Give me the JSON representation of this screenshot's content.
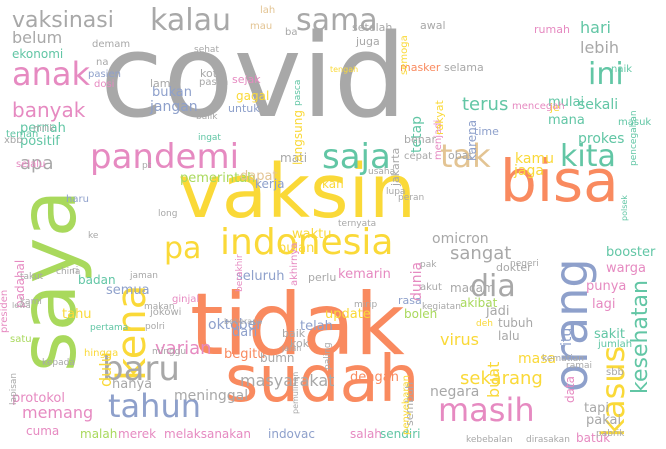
{
  "palette": {
    "gray": "#a8a8a8",
    "orange": "#f98a5f",
    "yellow": "#fad938",
    "green": "#a9d95c",
    "pink": "#e68ac1",
    "teal": "#62c6a5",
    "blue": "#8ea0cb",
    "tan": "#e3c493"
  },
  "words": [
    {
      "text": "covid",
      "color": "gray"
    },
    {
      "text": "tidak",
      "color": "orange"
    },
    {
      "text": "vaksin",
      "color": "yellow"
    },
    {
      "text": "saya",
      "color": "green"
    },
    {
      "text": "sudah",
      "color": "orange"
    },
    {
      "text": "bisa",
      "color": "orange"
    },
    {
      "text": "orang",
      "color": "blue"
    },
    {
      "text": "indonesia",
      "color": "yellow"
    },
    {
      "text": "kena",
      "color": "yellow"
    },
    {
      "text": "pandemi",
      "color": "pink"
    },
    {
      "text": "tahun",
      "color": "blue"
    },
    {
      "text": "masih",
      "color": "pink"
    },
    {
      "text": "anak",
      "color": "pink"
    },
    {
      "text": "saja",
      "color": "teal"
    },
    {
      "text": "kita",
      "color": "teal"
    },
    {
      "text": "kalau",
      "color": "gray"
    },
    {
      "text": "sama",
      "color": "gray"
    },
    {
      "text": "baru",
      "color": "gray"
    },
    {
      "text": "kasus",
      "color": "yellow"
    },
    {
      "text": "kesehatan",
      "color": "teal"
    },
    {
      "text": "dia",
      "color": "gray"
    },
    {
      "text": "tak",
      "color": "tan"
    },
    {
      "text": "pa",
      "color": "yellow"
    },
    {
      "text": "ini",
      "color": "teal"
    },
    {
      "text": "vaksinasi",
      "color": "gray"
    },
    {
      "text": "terus",
      "color": "teal"
    },
    {
      "text": "hari",
      "color": "teal"
    },
    {
      "text": "banyak",
      "color": "pink"
    },
    {
      "text": "sekarang",
      "color": "yellow"
    },
    {
      "text": "sangat",
      "color": "gray"
    },
    {
      "text": "apa",
      "color": "gray"
    },
    {
      "text": "lebih",
      "color": "gray"
    },
    {
      "text": "belum",
      "color": "gray"
    },
    {
      "text": "ekonomi",
      "color": "teal"
    },
    {
      "text": "varian",
      "color": "pink"
    },
    {
      "text": "dulu",
      "color": "yellow"
    },
    {
      "text": "memang",
      "color": "pink"
    },
    {
      "text": "masyarakat",
      "color": "gray"
    },
    {
      "text": "virus",
      "color": "yellow"
    },
    {
      "text": "oktober",
      "color": "blue"
    },
    {
      "text": "buat",
      "color": "yellow"
    },
    {
      "text": "negara",
      "color": "gray"
    },
    {
      "text": "masa",
      "color": "yellow"
    },
    {
      "text": "prokes",
      "color": "teal"
    },
    {
      "text": "sekali",
      "color": "teal"
    },
    {
      "text": "jangan",
      "color": "blue"
    },
    {
      "text": "bukan",
      "color": "blue"
    },
    {
      "text": "pernah",
      "color": "teal"
    },
    {
      "text": "positif",
      "color": "teal"
    },
    {
      "text": "pemerintah",
      "color": "green"
    },
    {
      "text": "dapat",
      "color": "tan"
    },
    {
      "text": "kamu",
      "color": "yellow"
    },
    {
      "text": "jaga",
      "color": "yellow"
    },
    {
      "text": "protokol",
      "color": "pink"
    },
    {
      "text": "cuma",
      "color": "pink"
    },
    {
      "text": "malah",
      "color": "green"
    },
    {
      "text": "merek",
      "color": "pink"
    },
    {
      "text": "melaksanakan",
      "color": "pink"
    },
    {
      "text": "indovac",
      "color": "blue"
    },
    {
      "text": "salah",
      "color": "pink"
    },
    {
      "text": "sendiri",
      "color": "teal"
    },
    {
      "text": "hanya",
      "color": "gray"
    },
    {
      "text": "meninggal",
      "color": "gray"
    },
    {
      "text": "dengan",
      "color": "orange"
    },
    {
      "text": "update",
      "color": "yellow"
    },
    {
      "text": "telah",
      "color": "blue"
    },
    {
      "text": "dari",
      "color": "blue"
    },
    {
      "text": "begitu",
      "color": "orange"
    },
    {
      "text": "bumn",
      "color": "gray"
    },
    {
      "text": "baik",
      "color": "gray"
    },
    {
      "text": "kok",
      "color": "gray"
    },
    {
      "text": "seluruh",
      "color": "blue"
    },
    {
      "text": "kemarin",
      "color": "pink"
    },
    {
      "text": "perlu",
      "color": "gray"
    },
    {
      "text": "semua",
      "color": "blue"
    },
    {
      "text": "tahu",
      "color": "yellow"
    },
    {
      "text": "waktu",
      "color": "yellow"
    },
    {
      "text": "bulan",
      "color": "yellow"
    },
    {
      "text": "mati",
      "color": "gray"
    },
    {
      "text": "kerja",
      "color": "blue"
    },
    {
      "text": "kan",
      "color": "yellow"
    },
    {
      "text": "omicron",
      "color": "gray"
    },
    {
      "text": "tapi",
      "color": "gray"
    },
    {
      "text": "pakai",
      "color": "gray"
    },
    {
      "text": "batuk",
      "color": "pink"
    },
    {
      "text": "sakit",
      "color": "teal"
    },
    {
      "text": "lagi",
      "color": "pink"
    },
    {
      "text": "punya",
      "color": "pink"
    },
    {
      "text": "booster",
      "color": "teal"
    },
    {
      "text": "warga",
      "color": "pink"
    },
    {
      "text": "itu",
      "color": "blue"
    },
    {
      "text": "data",
      "color": "pink"
    },
    {
      "text": "dokter",
      "color": "gray"
    },
    {
      "text": "akibat",
      "color": "green"
    },
    {
      "text": "macam",
      "color": "gray"
    },
    {
      "text": "lalu",
      "color": "gray"
    },
    {
      "text": "jadi",
      "color": "gray"
    },
    {
      "text": "tubuh",
      "color": "gray"
    },
    {
      "text": "dunia",
      "color": "pink"
    },
    {
      "text": "rasa",
      "color": "blue"
    },
    {
      "text": "boleh",
      "color": "green"
    },
    {
      "text": "akut",
      "color": "gray"
    },
    {
      "text": "mau",
      "color": "tan"
    },
    {
      "text": "lah",
      "color": "tan"
    },
    {
      "text": "ba",
      "color": "gray"
    },
    {
      "text": "setelah",
      "color": "gray"
    },
    {
      "text": "juga",
      "color": "gray"
    },
    {
      "text": "awal",
      "color": "gray"
    },
    {
      "text": "masker",
      "color": "orange"
    },
    {
      "text": "selama",
      "color": "gray"
    },
    {
      "text": "rumah",
      "color": "pink"
    },
    {
      "text": "naik",
      "color": "teal"
    },
    {
      "text": "mulai",
      "color": "teal"
    },
    {
      "text": "mana",
      "color": "teal"
    },
    {
      "text": "je",
      "color": "yellow"
    },
    {
      "text": "karena",
      "color": "blue"
    },
    {
      "text": "tetap",
      "color": "teal"
    },
    {
      "text": "langsung",
      "color": "yellow"
    },
    {
      "text": "menjadi",
      "color": "pink"
    },
    {
      "text": "rakyat",
      "color": "yellow"
    },
    {
      "text": "mencegah",
      "color": "pink"
    },
    {
      "text": "jakarta",
      "color": "gray"
    },
    {
      "text": "benar",
      "color": "gray"
    },
    {
      "text": "obat",
      "color": "gray"
    },
    {
      "text": "time",
      "color": "blue"
    },
    {
      "text": "cepat",
      "color": "gray"
    },
    {
      "text": "untuk",
      "color": "blue"
    },
    {
      "text": "sejak",
      "color": "pink"
    },
    {
      "text": "gagal",
      "color": "yellow"
    },
    {
      "text": "kota",
      "color": "gray"
    },
    {
      "text": "lama",
      "color": "gray"
    },
    {
      "text": "paska",
      "color": "gray"
    },
    {
      "text": "pasien",
      "color": "blue"
    },
    {
      "text": "demam",
      "color": "gray"
    },
    {
      "text": "dosi",
      "color": "pink"
    },
    {
      "text": "na",
      "color": "gray"
    },
    {
      "text": "sehat",
      "color": "gray"
    },
    {
      "text": "xbb",
      "color": "gray"
    },
    {
      "text": "milik",
      "color": "gray"
    },
    {
      "text": "selalu",
      "color": "pink"
    },
    {
      "text": "presiden",
      "color": "pink"
    },
    {
      "text": "padahal",
      "color": "pink"
    },
    {
      "text": "haru",
      "color": "blue"
    },
    {
      "text": "badan",
      "color": "teal"
    },
    {
      "text": "jaman",
      "color": "gray"
    },
    {
      "text": "china",
      "color": "gray"
    },
    {
      "text": "pertama",
      "color": "teal"
    },
    {
      "text": "ginjal",
      "color": "pink"
    },
    {
      "text": "jokowi",
      "color": "gray"
    },
    {
      "text": "polri",
      "color": "gray"
    },
    {
      "text": "satu",
      "color": "green"
    },
    {
      "text": "kepada",
      "color": "gray"
    },
    {
      "text": "hingga",
      "color": "yellow"
    },
    {
      "text": "kami",
      "color": "gray"
    },
    {
      "text": "takut",
      "color": "gray"
    },
    {
      "text": "teman",
      "color": "teal"
    },
    {
      "text": "masuk",
      "color": "teal"
    },
    {
      "text": "jumlah",
      "color": "teal"
    },
    {
      "text": "kematian",
      "color": "gray"
    },
    {
      "text": "ramai",
      "color": "gray"
    },
    {
      "text": "sbb",
      "color": "gray"
    },
    {
      "text": "pabrik",
      "color": "gray"
    },
    {
      "text": "dirasakan",
      "color": "gray"
    },
    {
      "text": "kebebalan",
      "color": "gray"
    },
    {
      "text": "sembuh",
      "color": "gray"
    },
    {
      "text": "penyebaran",
      "color": "yellow"
    },
    {
      "text": "akhirnya",
      "color": "pink"
    },
    {
      "text": "berakhir",
      "color": "pink"
    },
    {
      "text": "ternyata",
      "color": "gray"
    },
    {
      "text": "usaha",
      "color": "gray"
    },
    {
      "text": "lupa",
      "color": "gray"
    },
    {
      "text": "peran",
      "color": "gray"
    },
    {
      "text": "pak",
      "color": "gray"
    },
    {
      "text": "ingat",
      "color": "teal"
    },
    {
      "text": "balik",
      "color": "gray"
    },
    {
      "text": "long",
      "color": "gray"
    },
    {
      "text": "makan",
      "color": "gray"
    },
    {
      "text": "minggu",
      "color": "gray"
    },
    {
      "text": "lapisan",
      "color": "gray"
    },
    {
      "text": "negeri",
      "color": "gray"
    },
    {
      "text": "mirip",
      "color": "gray"
    },
    {
      "text": "kegiatan",
      "color": "gray"
    },
    {
      "text": "semoga",
      "color": "yellow"
    },
    {
      "text": "tengah",
      "color": "yellow"
    },
    {
      "text": "pencegahan",
      "color": "teal"
    },
    {
      "text": "polsek",
      "color": "teal"
    },
    {
      "text": "pasca",
      "color": "teal"
    },
    {
      "text": "deh",
      "color": "yellow"
    },
    {
      "text": "beberapa",
      "color": "gray"
    },
    {
      "text": "jalan",
      "color": "gray"
    },
    {
      "text": "paling",
      "color": "gray"
    },
    {
      "text": "pemulihan",
      "color": "gray"
    },
    {
      "text": "ke",
      "color": "gray"
    },
    {
      "text": "ri",
      "color": "gray"
    },
    {
      "text": "pt",
      "color": "gray"
    },
    {
      "text": "lewa",
      "color": "gray"
    }
  ]
}
